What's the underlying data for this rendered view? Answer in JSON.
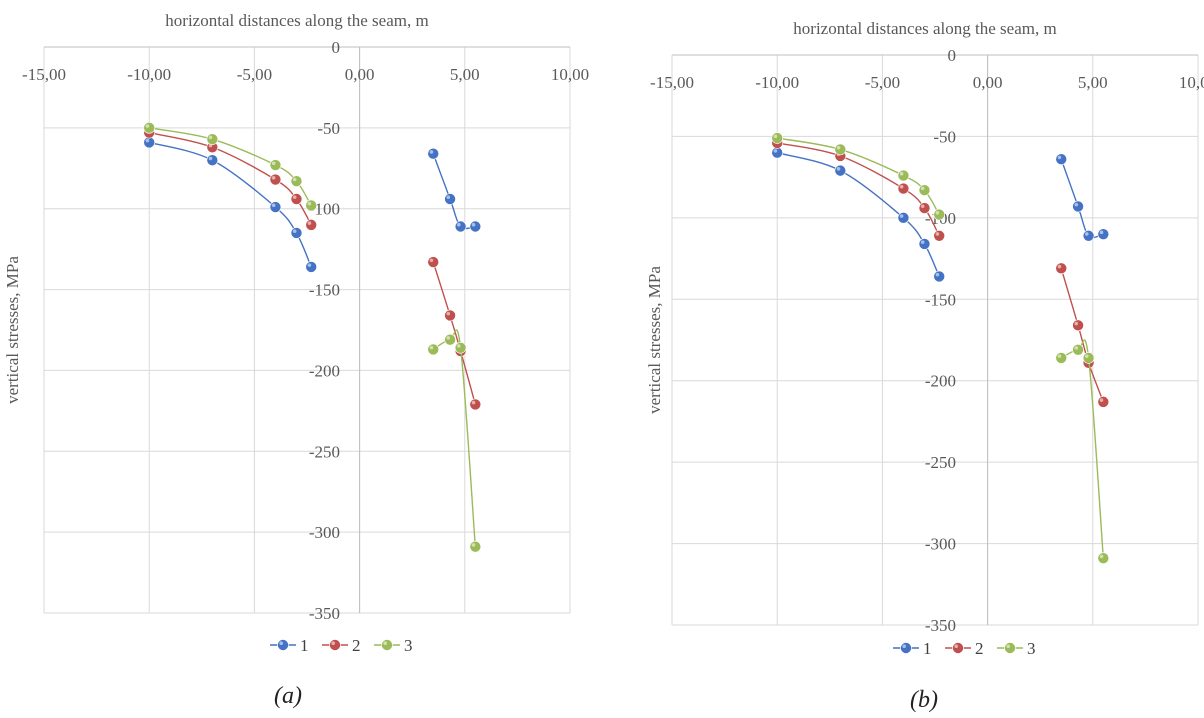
{
  "chart_data": [
    {
      "type": "scatter",
      "panel_label": "(a)",
      "xlabel": "horizontal distances along the seam, m",
      "ylabel": "vertical stresses, MPa",
      "xlim": [
        -15,
        10
      ],
      "ylim": [
        -350,
        0
      ],
      "x_ticks": [
        "-15,00",
        "-10,00",
        "-5,00",
        "0,00",
        "5,00",
        "10,00"
      ],
      "y_ticks": [
        "0",
        "-50",
        "-100",
        "-150",
        "-200",
        "-250",
        "-300",
        "-350"
      ],
      "grid": true,
      "x_axis_position": "top",
      "legend": "bottom",
      "series": [
        {
          "name": "1",
          "color": "#4472C4",
          "segments": [
            [
              [
                -10,
                -59
              ],
              [
                -7,
                -70
              ],
              [
                -4,
                -99
              ],
              [
                -3,
                -115
              ],
              [
                -2.3,
                -136
              ]
            ],
            [
              [
                3.5,
                -66
              ],
              [
                4.3,
                -94
              ],
              [
                4.8,
                -111
              ],
              [
                5.5,
                -111
              ]
            ]
          ]
        },
        {
          "name": "2",
          "color": "#C0504D",
          "segments": [
            [
              [
                -10,
                -53
              ],
              [
                -7,
                -62
              ],
              [
                -4,
                -82
              ],
              [
                -3,
                -94
              ],
              [
                -2.3,
                -110
              ]
            ],
            [
              [
                3.5,
                -133
              ],
              [
                4.3,
                -166
              ],
              [
                4.8,
                -188
              ],
              [
                5.5,
                -221
              ]
            ]
          ]
        },
        {
          "name": "3",
          "color": "#9BBB59",
          "segments": [
            [
              [
                -10,
                -50
              ],
              [
                -7,
                -57
              ],
              [
                -4,
                -73
              ],
              [
                -3,
                -83
              ],
              [
                -2.3,
                -98
              ]
            ],
            [
              [
                3.5,
                -187
              ],
              [
                4.3,
                -181
              ],
              [
                4.8,
                -186
              ],
              [
                5.5,
                -309
              ]
            ]
          ]
        }
      ]
    },
    {
      "type": "scatter",
      "panel_label": "(b)",
      "xlabel": "horizontal distances along the seam, m",
      "ylabel": "vertical stresses, MPa",
      "xlim": [
        -15,
        10
      ],
      "ylim": [
        -350,
        0
      ],
      "x_ticks": [
        "-15,00",
        "-10,00",
        "-5,00",
        "0,00",
        "5,00",
        "10,00"
      ],
      "y_ticks": [
        "0",
        "-50",
        "-100",
        "-150",
        "-200",
        "-250",
        "-300",
        "-350"
      ],
      "grid": true,
      "x_axis_position": "top",
      "legend": "bottom",
      "series": [
        {
          "name": "1",
          "color": "#4472C4",
          "segments": [
            [
              [
                -10,
                -60
              ],
              [
                -7,
                -71
              ],
              [
                -4,
                -100
              ],
              [
                -3,
                -116
              ],
              [
                -2.3,
                -136
              ]
            ],
            [
              [
                3.5,
                -64
              ],
              [
                4.3,
                -93
              ],
              [
                4.8,
                -111
              ],
              [
                5.5,
                -110
              ]
            ]
          ]
        },
        {
          "name": "2",
          "color": "#C0504D",
          "segments": [
            [
              [
                -10,
                -54
              ],
              [
                -7,
                -62
              ],
              [
                -4,
                -82
              ],
              [
                -3,
                -94
              ],
              [
                -2.3,
                -111
              ]
            ],
            [
              [
                3.5,
                -131
              ],
              [
                4.3,
                -166
              ],
              [
                4.8,
                -189
              ],
              [
                5.5,
                -213
              ]
            ]
          ]
        },
        {
          "name": "3",
          "color": "#9BBB59",
          "segments": [
            [
              [
                -10,
                -51
              ],
              [
                -7,
                -58
              ],
              [
                -4,
                -74
              ],
              [
                -3,
                -83
              ],
              [
                -2.3,
                -98
              ]
            ],
            [
              [
                3.5,
                -186
              ],
              [
                4.3,
                -181
              ],
              [
                4.8,
                -186
              ],
              [
                5.5,
                -309
              ]
            ]
          ]
        }
      ]
    }
  ]
}
